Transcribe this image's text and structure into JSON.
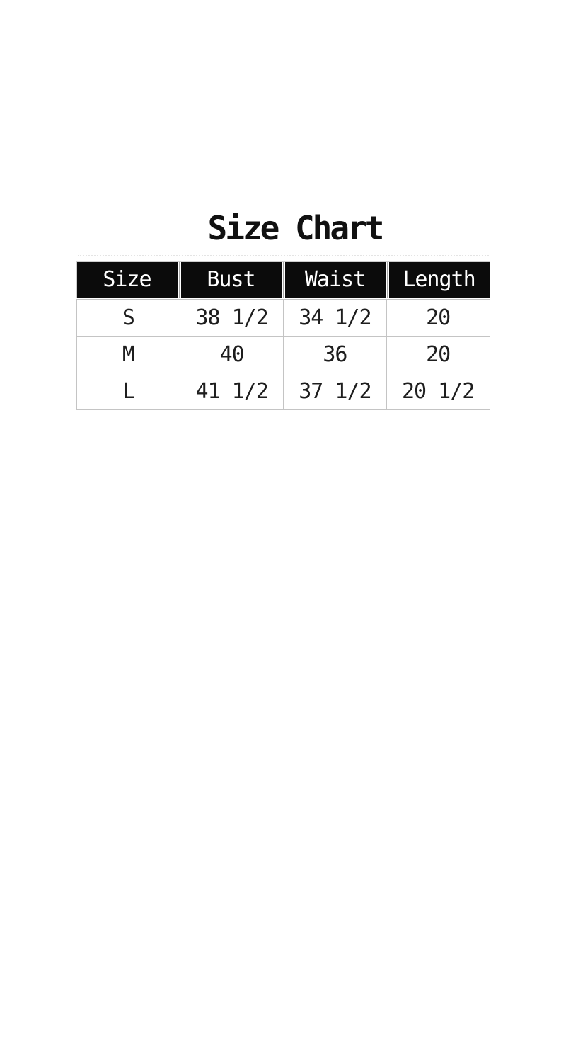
{
  "title": "Size Chart",
  "chart_data": {
    "type": "table",
    "title": "Size Chart",
    "columns": [
      "Size",
      "Bust",
      "Waist",
      "Length"
    ],
    "rows": [
      [
        "S",
        "38 1/2",
        "34 1/2",
        "20"
      ],
      [
        "M",
        "40",
        "36",
        "20"
      ],
      [
        "L",
        "41 1/2",
        "37 1/2",
        "20 1/2"
      ]
    ]
  },
  "styles": {
    "page_background": "#ffffff",
    "header_bg": "#0b0b0b",
    "header_text": "#ffffff",
    "body_text": "#1e1e1e",
    "border": "#c4c4c4",
    "gap_line": "#a8a8a8",
    "title_color": "#111111"
  }
}
